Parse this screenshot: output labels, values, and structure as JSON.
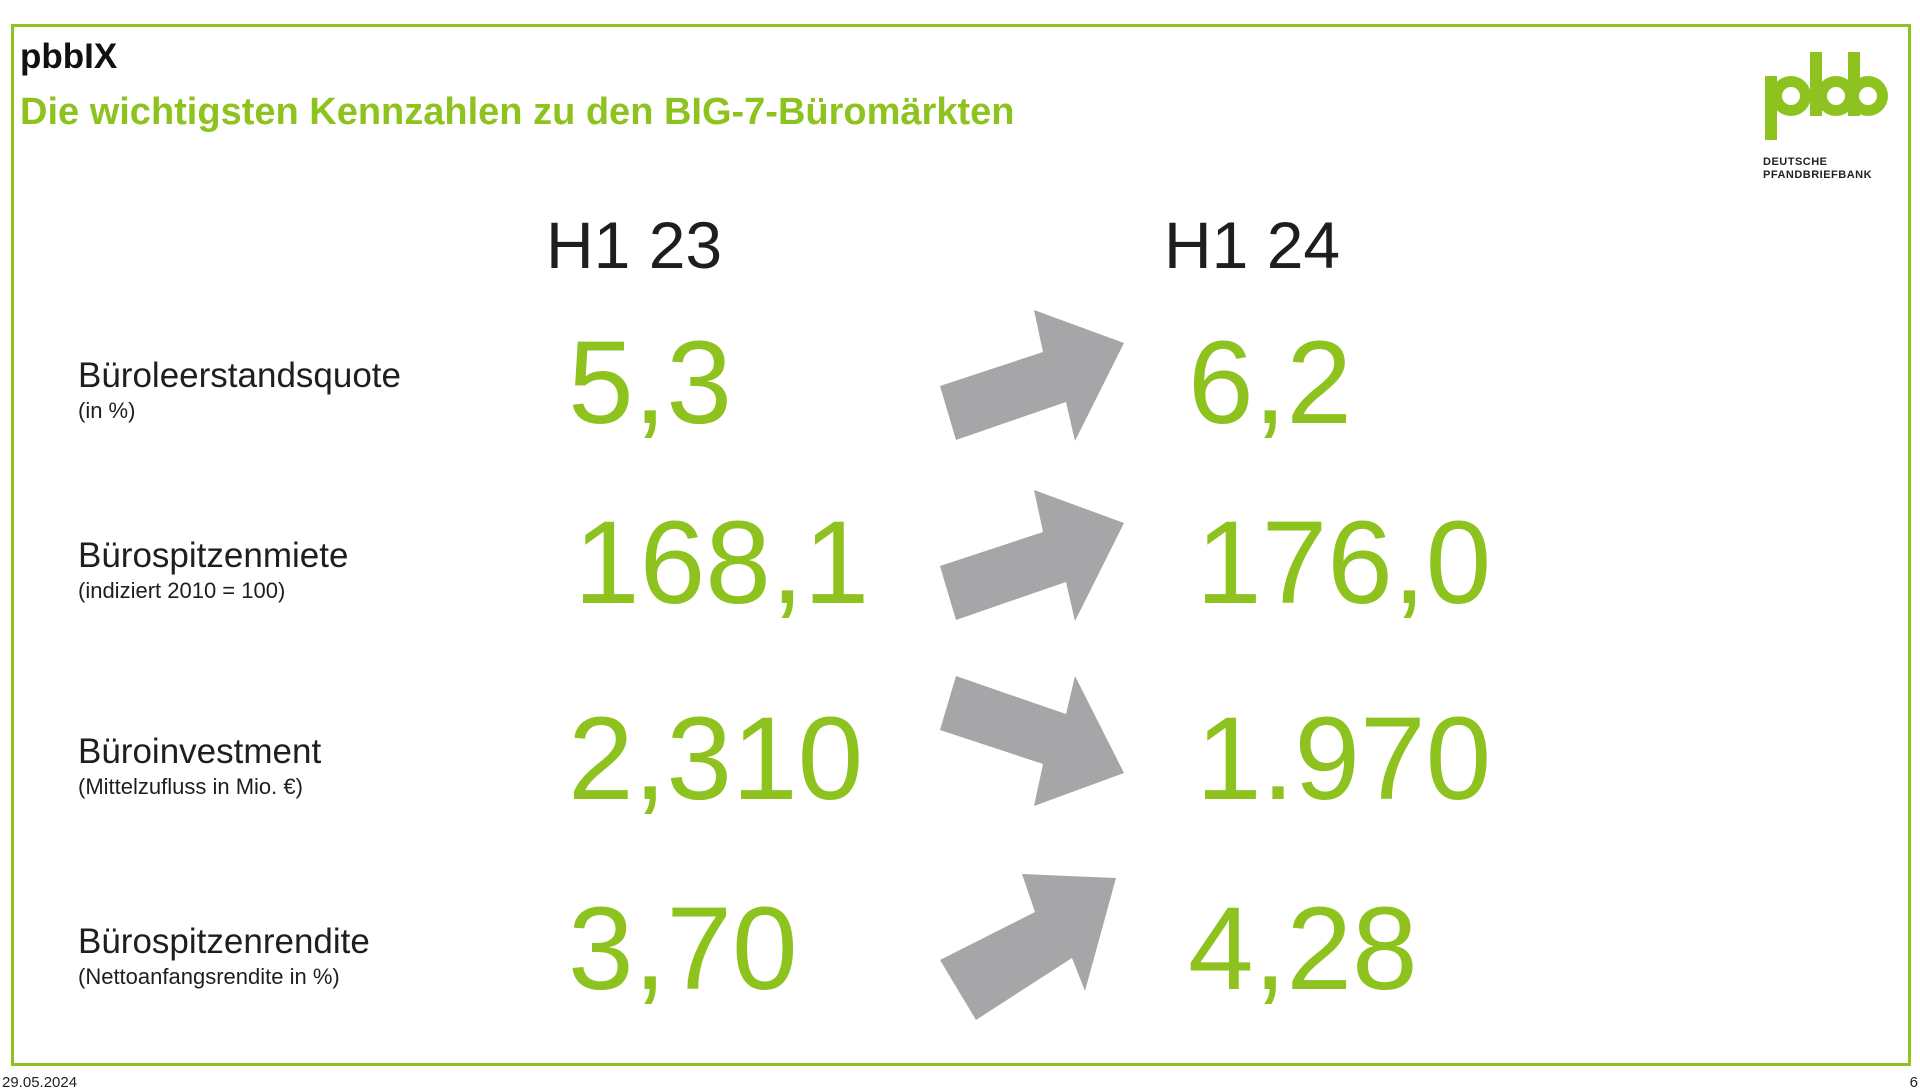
{
  "header": {
    "title": "pbbIX",
    "subtitle": "Die wichtigsten Kennzahlen zu den BIG-7-Büromärkten"
  },
  "logo": {
    "mark": "pbb",
    "line1": "DEUTSCHE",
    "line2": "PFANDBRIEFBANK",
    "color": "#8dc21f"
  },
  "columns": {
    "left": "H1 23",
    "right": "H1 24"
  },
  "rows": [
    {
      "label": "Büroleerstandsquote",
      "sublabel": "(in %)",
      "value_h1_23": "5,3",
      "value_h1_24": "6,2",
      "trend": "up"
    },
    {
      "label": "Bürospitzenmiete",
      "sublabel": "(indiziert 2010 = 100)",
      "value_h1_23": "168,1",
      "value_h1_24": "176,0",
      "trend": "up"
    },
    {
      "label": "Büroinvestment",
      "sublabel": "(Mittelzufluss in Mio. €)",
      "value_h1_23": "2,310",
      "value_h1_24": "1.970",
      "trend": "down"
    },
    {
      "label": "Bürospitzenrendite",
      "sublabel": "(Nettoanfangsrendite in %)",
      "value_h1_23": "3,70",
      "value_h1_24": "4,28",
      "trend": "up"
    }
  ],
  "footer": {
    "date": "29.05.2024",
    "page": "6"
  },
  "colors": {
    "accent": "#8dc21f",
    "arrow": "#a6a5a7",
    "text": "#1e1e1e"
  }
}
